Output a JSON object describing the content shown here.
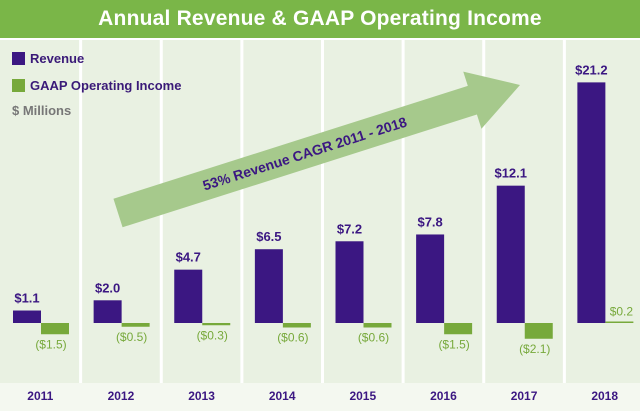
{
  "title": "Annual Revenue & GAAP Operating Income",
  "colors": {
    "header": "#7ab648",
    "revenue": "#3b1782",
    "operating_income": "#77a93b",
    "column_bg": "#e9f1e2",
    "arrow": "#a6c98c"
  },
  "legend": {
    "revenue": "Revenue",
    "operating_income": "GAAP Operating Income",
    "units": "$ Millions"
  },
  "arrow_label": "53% Revenue CAGR 2011 - 2018",
  "chart_data": {
    "type": "bar",
    "title": "Annual Revenue & GAAP Operating Income",
    "categories": [
      "2011",
      "2012",
      "2013",
      "2014",
      "2015",
      "2016",
      "2017",
      "2018"
    ],
    "series": [
      {
        "name": "Revenue",
        "values": [
          1.1,
          2.0,
          4.7,
          6.5,
          7.2,
          7.8,
          12.1,
          21.2
        ],
        "labels": [
          "$1.1",
          "$2.0",
          "$4.7",
          "$6.5",
          "$7.2",
          "$7.8",
          "$12.1",
          "$21.2"
        ]
      },
      {
        "name": "GAAP Operating Income",
        "values": [
          -1.5,
          -0.5,
          -0.3,
          -0.6,
          -0.6,
          -1.5,
          -2.1,
          0.2
        ],
        "labels": [
          "($1.5)",
          "($0.5)",
          "($0.3)",
          "($0.6)",
          "($0.6)",
          "($1.5)",
          "($2.1)",
          "$0.2"
        ]
      }
    ],
    "unit": "$ Millions",
    "legend_position": "top-left",
    "grid": false
  }
}
